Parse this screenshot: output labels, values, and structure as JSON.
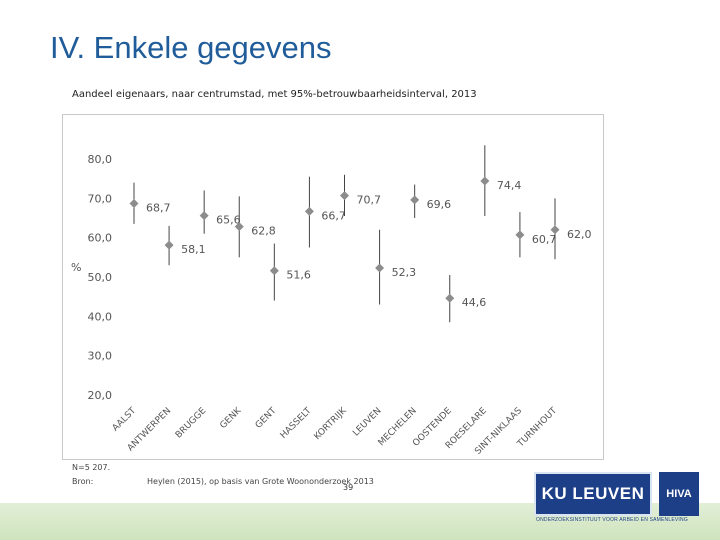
{
  "slide": {
    "title": "IV. Enkele gegevens",
    "caption": "Aandeel eigenaars, naar centrumstad, met 95%-betrouwbaarheidsinterval, 2013",
    "n_note": "N=5 207.",
    "source_label": "Bron:",
    "source_text": "Heylen (2015), op basis van Grote Woononderzoek 2013",
    "page_number": "39"
  },
  "logo": {
    "main": "KU LEUVEN",
    "partner": "HIVA",
    "subtitle": "ONDERZOEKSINSTITUUT VOOR ARBEID EN SAMENLEVING"
  },
  "colors": {
    "title": "#1f5c99",
    "marker": "#8c8c8c",
    "ci_line": "#444444",
    "axis_text": "#555555",
    "logo_blue": "#1d3f87",
    "bottom_bar": "#dbeacd"
  },
  "chart_data": {
    "type": "scatter",
    "title": "Aandeel eigenaars, naar centrumstad, met 95%-betrouwbaarheidsinterval, 2013",
    "ylabel": "%",
    "xlabel": "",
    "ylim": [
      20,
      80
    ],
    "yticks": [
      "20,0",
      "30,0",
      "40,0",
      "50,0",
      "60,0",
      "70,0",
      "80,0"
    ],
    "grid": false,
    "marker": "diamond",
    "categories": [
      "AALST",
      "ANTWERPEN",
      "BRUGGE",
      "GENK",
      "GENT",
      "HASSELT",
      "KORTRIJK",
      "LEUVEN",
      "MECHELEN",
      "OOSTENDE",
      "ROESELARE",
      "SINT-NIKLAAS",
      "TURNHOUT"
    ],
    "values": [
      68.7,
      58.1,
      65.6,
      62.8,
      51.6,
      66.7,
      70.7,
      52.3,
      69.6,
      44.6,
      74.4,
      60.7,
      62.0
    ],
    "labels": [
      "68,7",
      "58,1",
      "65,6",
      "62,8",
      "51,6",
      "66,7",
      "70,7",
      "52,3",
      "69,6",
      "44,6",
      "74,4",
      "60,7",
      "62,0"
    ],
    "ci_lower": [
      63.5,
      53.0,
      61.0,
      55.0,
      44.0,
      57.5,
      65.5,
      43.0,
      65.0,
      38.5,
      65.5,
      55.0,
      54.5
    ],
    "ci_upper": [
      74.0,
      63.0,
      72.0,
      70.5,
      58.5,
      75.5,
      76.0,
      62.0,
      73.5,
      50.5,
      83.5,
      66.5,
      70.0
    ]
  }
}
